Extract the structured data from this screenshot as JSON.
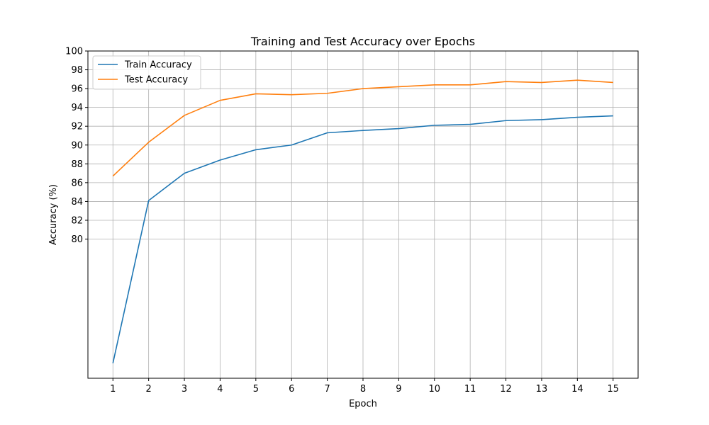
{
  "chart_data": {
    "type": "line",
    "title": "Training and Test Accuracy over Epochs",
    "xlabel": "Epoch",
    "ylabel": "Accuracy (%)",
    "x": [
      1,
      2,
      3,
      4,
      5,
      6,
      7,
      8,
      9,
      10,
      11,
      12,
      13,
      14,
      15
    ],
    "xlim": [
      0.3,
      15.7
    ],
    "ylim": [
      65.2,
      100
    ],
    "yticks": [
      80,
      82,
      84,
      86,
      88,
      90,
      92,
      94,
      96,
      98,
      100
    ],
    "grid": true,
    "legend_position": "top-left",
    "series": [
      {
        "name": "Train Accuracy",
        "color": "#1f77b4",
        "values": [
          66.8,
          84.1,
          87.0,
          88.4,
          89.5,
          90.0,
          91.3,
          91.55,
          91.75,
          92.1,
          92.2,
          92.6,
          92.7,
          92.95,
          93.1
        ]
      },
      {
        "name": "Test Accuracy",
        "color": "#ff7f0e",
        "values": [
          86.7,
          90.3,
          93.15,
          94.75,
          95.45,
          95.35,
          95.5,
          96.0,
          96.2,
          96.4,
          96.4,
          96.75,
          96.65,
          96.9,
          96.65
        ]
      }
    ]
  }
}
